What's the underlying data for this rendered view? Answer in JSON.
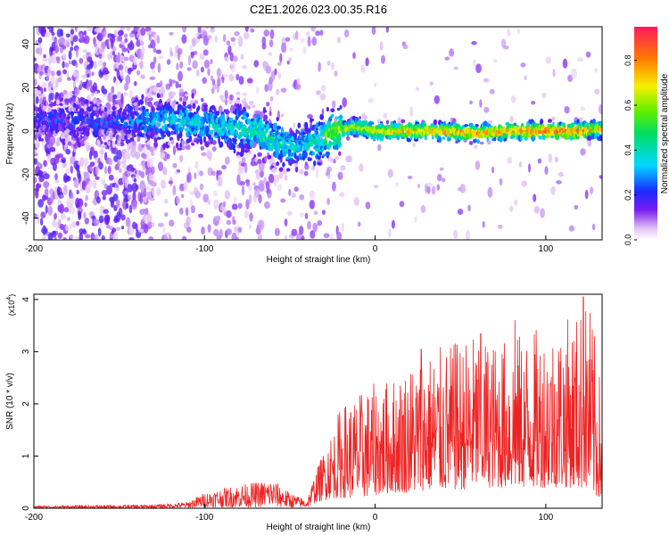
{
  "title": "C2E1.2026.023.00.35.R16",
  "chart_data": [
    {
      "type": "heatmap",
      "name": "spectrogram",
      "xlabel": "Height of straight line (km)",
      "ylabel": "Frequency (Hz)",
      "xlim": [
        -200,
        133
      ],
      "ylim": [
        -50,
        48
      ],
      "xticks": [
        "-200",
        "-100",
        "0",
        "100"
      ],
      "xtick_values": [
        -200,
        -100,
        0,
        100
      ],
      "yticks": [
        "40",
        "20",
        "0",
        "-20",
        "-40"
      ],
      "ytick_values": [
        40,
        20,
        0,
        -20,
        -40
      ],
      "ridge": {
        "x": [
          -200,
          -150,
          -130,
          -110,
          -90,
          -70,
          -55,
          -45,
          -35,
          -25,
          -10,
          0,
          20,
          40,
          60,
          80,
          100,
          120,
          133
        ],
        "center_freq": [
          5,
          4,
          5,
          4,
          2,
          0,
          -6,
          -8,
          -5,
          0,
          2,
          0,
          0,
          0,
          -1,
          0,
          0,
          0,
          1
        ],
        "peak_amplitude": [
          0.2,
          0.22,
          0.35,
          0.38,
          0.4,
          0.45,
          0.42,
          0.38,
          0.45,
          0.6,
          0.7,
          0.72,
          0.8,
          0.82,
          0.85,
          0.83,
          0.88,
          0.9,
          0.75
        ]
      },
      "colorbar": {
        "label": "Normalized spectral amplitude",
        "ticks": [
          "0.0",
          "0.2",
          "0.4",
          "0.6",
          "0.8"
        ],
        "tick_values": [
          0.0,
          0.2,
          0.4,
          0.6,
          0.8
        ],
        "range": [
          0,
          0.95
        ]
      }
    },
    {
      "type": "line",
      "name": "snr",
      "xlabel": "Height of straight line (km)",
      "ylabel": "SNR (10 * v/v)",
      "scale_label": "(x10",
      "scale_exp": "4",
      "xlim": [
        -200,
        133
      ],
      "ylim": [
        0,
        4.1
      ],
      "xticks": [
        "-200",
        "-100",
        "0",
        "100"
      ],
      "xtick_values": [
        -200,
        -100,
        0,
        100
      ],
      "yticks": [
        "0",
        "1",
        "2",
        "3",
        "4"
      ],
      "ytick_values": [
        0,
        1,
        2,
        3,
        4
      ],
      "color": "#ee2222",
      "envelope": {
        "x": [
          -200,
          -160,
          -130,
          -110,
          -100,
          -80,
          -70,
          -60,
          -50,
          -40,
          -35,
          -30,
          -25,
          -20,
          -10,
          0,
          10,
          20,
          30,
          40,
          50,
          60,
          70,
          80,
          90,
          100,
          110,
          120,
          125,
          130,
          133
        ],
        "low": [
          0,
          0,
          0,
          0.01,
          0.02,
          0.02,
          0.02,
          0.03,
          0.01,
          0.02,
          0.1,
          0.15,
          0.2,
          0.2,
          0.2,
          0.25,
          0.3,
          0.3,
          0.35,
          0.35,
          0.35,
          0.4,
          0.4,
          0.4,
          0.4,
          0.4,
          0.4,
          0.4,
          0.3,
          0.2,
          0.2
        ],
        "high": [
          0.05,
          0.06,
          0.07,
          0.12,
          0.3,
          0.45,
          0.5,
          0.55,
          0.3,
          0.15,
          0.7,
          1.1,
          1.5,
          2.0,
          2.2,
          2.4,
          2.5,
          2.8,
          3.0,
          3.1,
          3.2,
          3.4,
          3.2,
          3.3,
          3.4,
          3.5,
          3.6,
          3.8,
          4.1,
          3.0,
          2.2
        ]
      },
      "peaks": [
        {
          "x": 62,
          "y": 3.35
        },
        {
          "x": 82,
          "y": 3.6
        },
        {
          "x": 122,
          "y": 4.05
        },
        {
          "x": 47,
          "y": 3.15
        },
        {
          "x": 27,
          "y": 3.05
        }
      ]
    }
  ]
}
